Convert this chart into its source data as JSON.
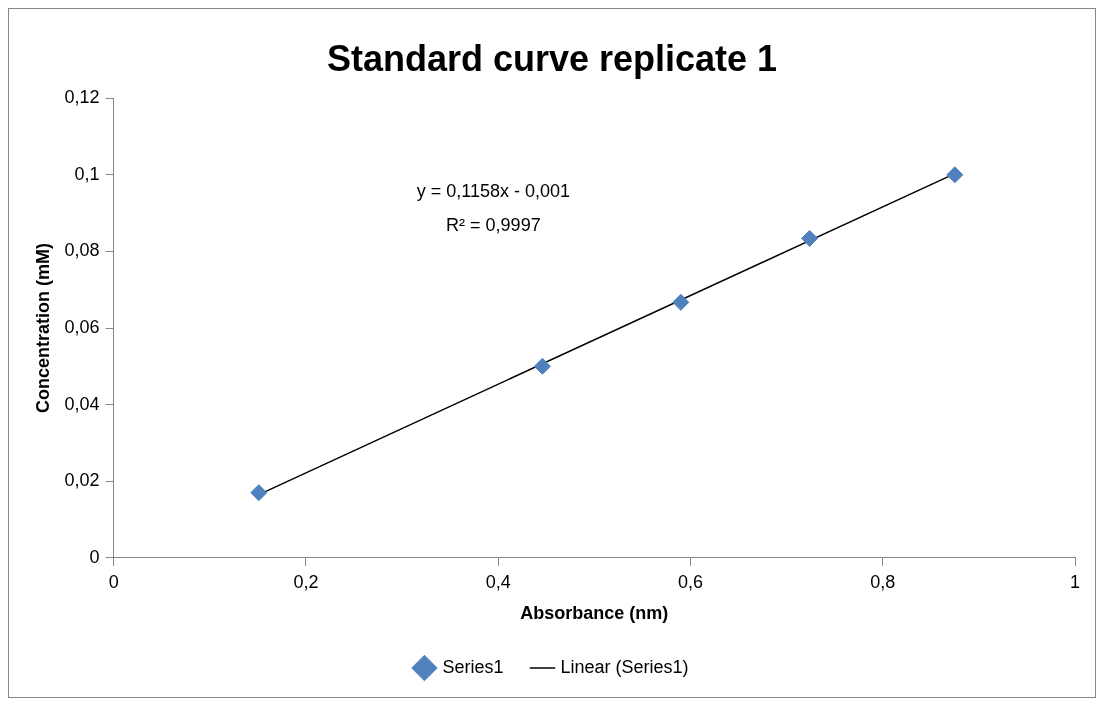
{
  "chart_data": {
    "type": "scatter",
    "title": "Standard curve replicate 1",
    "xlabel": "Absorbance (nm)",
    "ylabel": "Concentration (mM)",
    "x": [
      0.151,
      0.446,
      0.59,
      0.724,
      0.875
    ],
    "series": [
      {
        "name": "Series1",
        "color": "#4f81bd",
        "values": [
          0.017,
          0.05,
          0.0667,
          0.0834,
          0.1
        ],
        "marker": "diamond"
      },
      {
        "name": "Linear (Series1)",
        "type": "line",
        "color": "#000000",
        "x": [
          0.151,
          0.875
        ],
        "values": [
          0.0165,
          0.1003
        ],
        "marker": "none"
      }
    ],
    "xlim": [
      0,
      1
    ],
    "xticks": [
      0,
      {
        "value": 0.2,
        "label": "0,2"
      },
      {
        "value": 0.4,
        "label": "0,4"
      },
      {
        "value": 0.6,
        "label": "0,6"
      },
      {
        "value": 0.8,
        "label": "0,8"
      },
      1
    ],
    "ylim": [
      0,
      0.12
    ],
    "yticks": [
      0,
      {
        "value": 0.02,
        "label": "0,02"
      },
      {
        "value": 0.04,
        "label": "0,04"
      },
      {
        "value": 0.06,
        "label": "0,06"
      },
      {
        "value": 0.08,
        "label": "0,08"
      },
      {
        "value": 0.1,
        "label": "0,1"
      },
      {
        "value": 0.12,
        "label": "0,12"
      }
    ],
    "annotations": [
      "y = 0,1158x - 0,001",
      "R² = 0,9997"
    ],
    "legend": "bottom"
  }
}
